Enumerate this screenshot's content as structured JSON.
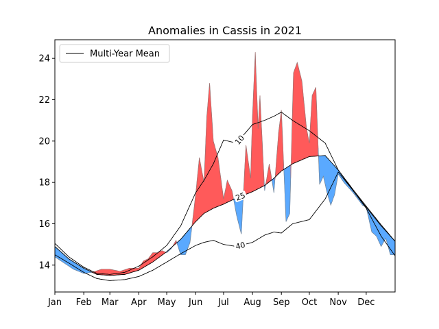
{
  "chart_data": {
    "type": "area",
    "title": "Anomalies in Cassis in 2021",
    "xlabel": "",
    "ylabel": "",
    "xlim": [
      0,
      365
    ],
    "ylim": [
      12.7,
      24.9
    ],
    "x_ticks": [
      {
        "label": "Jan",
        "day": 0
      },
      {
        "label": "Feb",
        "day": 31
      },
      {
        "label": "Mar",
        "day": 59
      },
      {
        "label": "Apr",
        "day": 90
      },
      {
        "label": "May",
        "day": 120
      },
      {
        "label": "Jun",
        "day": 151
      },
      {
        "label": "Jul",
        "day": 181
      },
      {
        "label": "Aug",
        "day": 212
      },
      {
        "label": "Sep",
        "day": 243
      },
      {
        "label": "Oct",
        "day": 273
      },
      {
        "label": "Nov",
        "day": 304
      },
      {
        "label": "Dec",
        "day": 334
      }
    ],
    "y_ticks": [
      14,
      16,
      18,
      20,
      22,
      24
    ],
    "legend": {
      "placement": "top-left",
      "entries": [
        "Multi-Year Mean"
      ]
    },
    "grid": false,
    "colors": {
      "above_mean": "#ff5a5a",
      "below_mean": "#5aa9ff",
      "mean_line": "#000000"
    },
    "contour_labels": [
      "10",
      "25",
      "40"
    ],
    "series": [
      {
        "name": "Multi-Year Mean",
        "role": "mean",
        "days": [
          0,
          15,
          31,
          45,
          59,
          75,
          90,
          105,
          120,
          135,
          151,
          160,
          170,
          181,
          195,
          212,
          225,
          235,
          243,
          255,
          273,
          290,
          304,
          320,
          334,
          350,
          365
        ],
        "values": [
          14.9,
          14.3,
          13.85,
          13.55,
          13.5,
          13.55,
          13.75,
          14.15,
          14.65,
          15.25,
          16.1,
          16.5,
          16.75,
          16.95,
          17.25,
          17.55,
          17.85,
          18.2,
          18.55,
          18.9,
          19.25,
          19.3,
          18.6,
          17.6,
          16.8,
          15.9,
          15.15
        ]
      },
      {
        "name": "",
        "role": "upper_quantile",
        "days": [
          0,
          15,
          31,
          45,
          59,
          75,
          90,
          105,
          120,
          135,
          151,
          160,
          170,
          181,
          195,
          212,
          225,
          235,
          243,
          255,
          273,
          290,
          304,
          320,
          334,
          350,
          365
        ],
        "values": [
          15.05,
          14.4,
          13.9,
          13.6,
          13.55,
          13.65,
          13.95,
          14.4,
          14.95,
          15.9,
          17.5,
          18.1,
          18.9,
          20.05,
          19.9,
          20.8,
          21.0,
          21.2,
          21.4,
          21.0,
          20.5,
          19.9,
          18.6,
          17.65,
          16.85,
          15.95,
          15.15
        ]
      },
      {
        "name": "",
        "role": "lower_quantile",
        "days": [
          0,
          15,
          31,
          45,
          59,
          75,
          90,
          105,
          120,
          135,
          151,
          160,
          170,
          181,
          195,
          212,
          225,
          235,
          243,
          255,
          273,
          290,
          304,
          320,
          334,
          350,
          365
        ],
        "values": [
          14.5,
          14.1,
          13.65,
          13.35,
          13.25,
          13.3,
          13.45,
          13.75,
          14.15,
          14.55,
          14.95,
          15.1,
          15.2,
          15.0,
          14.9,
          15.1,
          15.45,
          15.6,
          15.55,
          16.0,
          16.2,
          17.2,
          18.5,
          17.6,
          16.75,
          15.4,
          14.45
        ]
      },
      {
        "name": "",
        "role": "observed",
        "days": [
          0,
          10,
          20,
          31,
          40,
          50,
          59,
          70,
          80,
          90,
          95,
          100,
          105,
          110,
          115,
          120,
          125,
          130,
          135,
          140,
          145,
          151,
          155,
          160,
          163,
          166,
          170,
          175,
          181,
          185,
          190,
          195,
          200,
          205,
          210,
          212,
          215,
          218,
          220,
          225,
          230,
          235,
          240,
          243,
          248,
          252,
          256,
          260,
          265,
          270,
          273,
          276,
          280,
          284,
          288,
          292,
          296,
          300,
          304,
          310,
          320,
          330,
          334,
          340,
          345,
          350,
          355,
          360,
          365
        ],
        "values": [
          14.4,
          14.1,
          13.8,
          13.6,
          13.65,
          13.8,
          13.8,
          13.7,
          13.85,
          13.85,
          14.2,
          14.3,
          14.6,
          14.6,
          14.7,
          14.6,
          14.8,
          15.2,
          14.5,
          14.5,
          15.1,
          17.4,
          19.2,
          18.0,
          21.2,
          22.8,
          20.0,
          19.2,
          17.2,
          18.1,
          17.6,
          16.4,
          15.5,
          19.8,
          18.2,
          21.2,
          24.3,
          20.6,
          22.2,
          17.6,
          18.9,
          17.5,
          20.4,
          21.5,
          16.1,
          16.5,
          23.3,
          23.8,
          22.9,
          20.6,
          19.9,
          22.2,
          22.6,
          17.9,
          18.3,
          17.5,
          16.9,
          17.4,
          18.4,
          18.0,
          17.5,
          16.9,
          16.8,
          15.6,
          15.4,
          14.9,
          15.3,
          14.5,
          14.5
        ]
      }
    ]
  }
}
